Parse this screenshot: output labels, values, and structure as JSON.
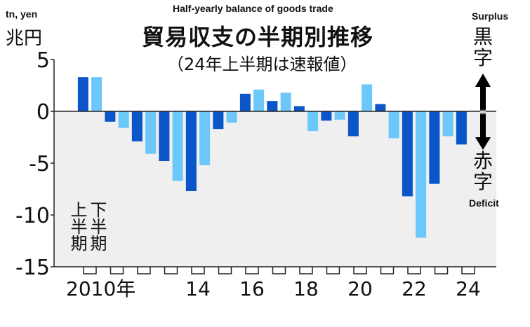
{
  "chart_data": {
    "type": "bar",
    "title": "Half-yearly balance of goods trade",
    "title_jp": "貿易収支の半期別推移",
    "subtitle_jp": "（24年上半期は速報値）",
    "ylabel": "tn, yen",
    "ylabel_jp": "兆円",
    "ylim": [
      -15,
      5
    ],
    "yticks": [
      "5",
      "0",
      "-5",
      "-10",
      "-15"
    ],
    "ytick_values": [
      5,
      0,
      -5,
      -10,
      -15
    ],
    "x_tick_labels": [
      "2010年",
      "14",
      "16",
      "18",
      "20",
      "22",
      "24"
    ],
    "x_tick_years": [
      2010,
      2014,
      2016,
      2018,
      2020,
      2022,
      2024
    ],
    "first_year": 2010,
    "series": [
      {
        "name": "上半期",
        "color": "#0a55c8",
        "values": [
          3.3,
          -1.0,
          -2.9,
          -4.8,
          -7.7,
          -1.7,
          1.7,
          1.0,
          0.5,
          -0.9,
          -2.4,
          0.7,
          -8.2,
          -7.0,
          -3.2
        ]
      },
      {
        "name": "下半期",
        "color": "#6cc8fa",
        "values": [
          3.3,
          -1.6,
          -4.1,
          -6.7,
          -5.2,
          -1.1,
          2.1,
          1.8,
          -1.9,
          -0.8,
          2.6,
          -2.6,
          -12.2,
          -2.4
        ]
      }
    ],
    "legend_top_jp": "上半期",
    "legend_bottom_jp": "下半期",
    "grid": false,
    "negative_region_color": "#efefef"
  },
  "annotations": {
    "surplus": "Surplus",
    "surplus_jp": "黒字",
    "deficit": "Deficit",
    "deficit_jp": "赤字"
  }
}
